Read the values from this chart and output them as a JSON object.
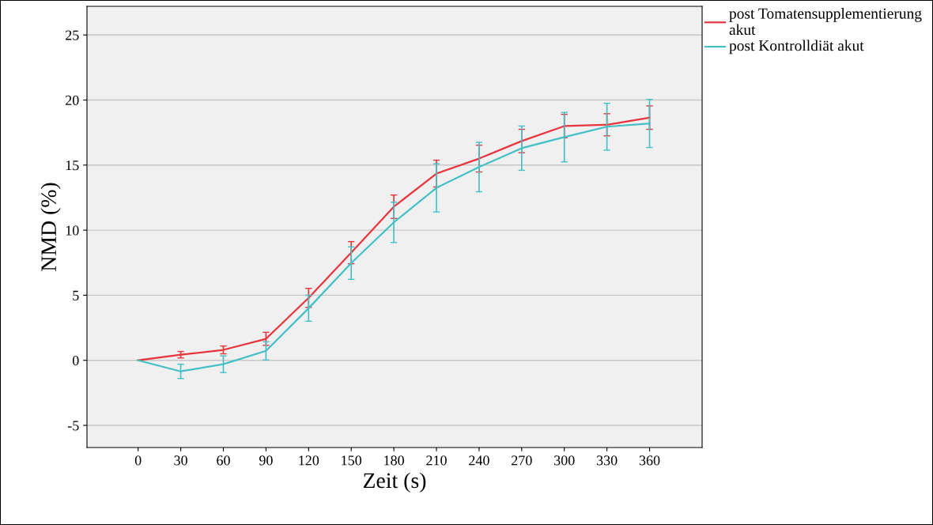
{
  "chart_data": {
    "type": "line",
    "xlabel": "Zeit (s)",
    "ylabel": "NMD (%)",
    "x": [
      0,
      30,
      60,
      90,
      120,
      150,
      180,
      210,
      240,
      270,
      300,
      330,
      360
    ],
    "xlim": [
      -36,
      397
    ],
    "xticks": [
      0,
      30,
      60,
      90,
      120,
      150,
      180,
      210,
      240,
      270,
      300,
      330,
      360
    ],
    "ylim": [
      -6.7,
      27.2
    ],
    "yticks": [
      {
        "value": -5,
        "label": "-5"
      },
      0,
      5,
      10,
      15,
      20,
      25
    ],
    "grid": "y",
    "legend": "top right",
    "marker": "none",
    "line_style": "solid",
    "series": [
      {
        "name": "post Tomatensupplementierung akut",
        "color": "#e8353d",
        "values": [
          0,
          0.43,
          0.8,
          1.65,
          4.8,
          8.27,
          11.8,
          14.35,
          15.5,
          16.85,
          18.0,
          18.1,
          18.65
        ],
        "errors": [
          null,
          0.25,
          0.3,
          0.5,
          0.73,
          0.85,
          0.9,
          1.03,
          1.03,
          0.9,
          0.9,
          0.85,
          0.9
        ]
      },
      {
        "name": "post Kontrolldiät akut",
        "color": "#45c0c5",
        "values": [
          0,
          -0.85,
          -0.3,
          0.73,
          4.0,
          7.47,
          10.6,
          13.25,
          14.85,
          16.3,
          17.15,
          17.95,
          18.2
        ],
        "errors": [
          null,
          0.55,
          0.64,
          0.7,
          1.0,
          1.25,
          1.55,
          1.85,
          1.9,
          1.7,
          1.9,
          1.8,
          1.85
        ]
      }
    ]
  }
}
